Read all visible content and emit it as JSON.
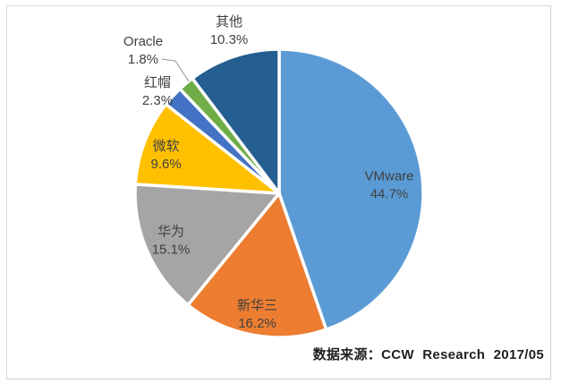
{
  "chart_data": {
    "type": "pie",
    "title": "",
    "categories": [
      "VMware",
      "新华三",
      "华为",
      "微软",
      "红帽",
      "Oracle",
      "其他"
    ],
    "values": [
      44.7,
      16.2,
      15.1,
      9.6,
      2.3,
      1.8,
      10.3
    ],
    "value_labels": [
      "44.7%",
      "16.2%",
      "15.1%",
      "9.6%",
      "2.3%",
      "1.8%",
      "10.3%"
    ],
    "colors": [
      "#5B9BD5",
      "#ED7D31",
      "#A5A5A5",
      "#FFC000",
      "#4472C4",
      "#70AD47",
      "#255E91"
    ],
    "slice_border_color": "#FFFFFF",
    "label_text_color": "#404040",
    "label_positions": [
      "inside",
      "inside",
      "inside",
      "inside",
      "outside",
      "outside",
      "outside"
    ],
    "start_angle": 0,
    "direction": "clockwise",
    "legend": "none"
  },
  "source_note": "数据来源：CCW Research 2017/05"
}
